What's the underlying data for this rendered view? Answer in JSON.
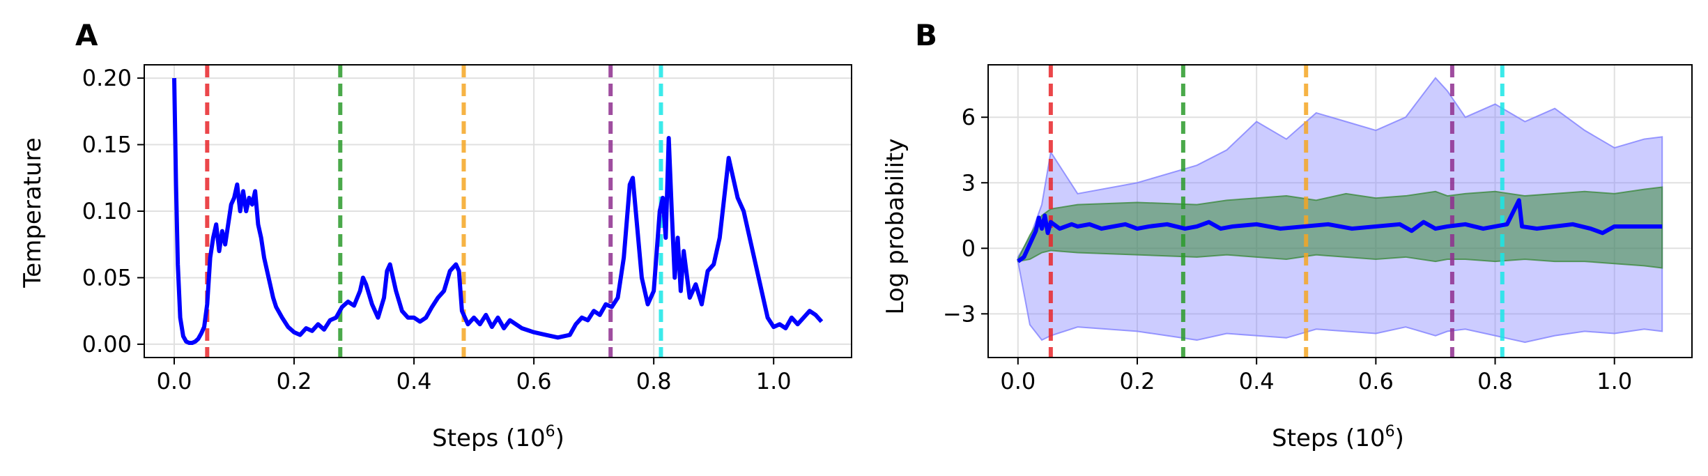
{
  "chart_data": [
    {
      "type": "line",
      "panel_label": "A",
      "xlabel": "Steps (10",
      "xlabel_exp": "6",
      "xlabel_close": ")",
      "ylabel": "Temperature",
      "xlim": [
        -0.05,
        1.13
      ],
      "ylim": [
        -0.01,
        0.21
      ],
      "xticks": [
        0.0,
        0.2,
        0.4,
        0.6,
        0.8,
        1.0
      ],
      "xtick_labels": [
        "0.0",
        "0.2",
        "0.4",
        "0.6",
        "0.8",
        "1.0"
      ],
      "yticks": [
        0.0,
        0.05,
        0.1,
        0.15,
        0.2
      ],
      "ytick_labels": [
        "0.00",
        "0.05",
        "0.10",
        "0.15",
        "0.20"
      ],
      "grid": true,
      "vlines": [
        {
          "x": 0.055,
          "color": "#e8262a"
        },
        {
          "x": 0.277,
          "color": "#2a9a2a"
        },
        {
          "x": 0.483,
          "color": "#f5a623"
        },
        {
          "x": 0.728,
          "color": "#8e2e8e"
        },
        {
          "x": 0.812,
          "color": "#19e6e6"
        }
      ],
      "series": [
        {
          "color": "#0000ff",
          "points": [
            [
              0.0,
              0.2
            ],
            [
              0.003,
              0.12
            ],
            [
              0.006,
              0.06
            ],
            [
              0.01,
              0.02
            ],
            [
              0.015,
              0.006
            ],
            [
              0.02,
              0.002
            ],
            [
              0.025,
              0.001
            ],
            [
              0.03,
              0.001
            ],
            [
              0.035,
              0.002
            ],
            [
              0.04,
              0.004
            ],
            [
              0.045,
              0.008
            ],
            [
              0.05,
              0.013
            ],
            [
              0.055,
              0.03
            ],
            [
              0.06,
              0.065
            ],
            [
              0.065,
              0.08
            ],
            [
              0.07,
              0.09
            ],
            [
              0.075,
              0.07
            ],
            [
              0.08,
              0.085
            ],
            [
              0.085,
              0.075
            ],
            [
              0.09,
              0.09
            ],
            [
              0.095,
              0.105
            ],
            [
              0.1,
              0.11
            ],
            [
              0.105,
              0.12
            ],
            [
              0.11,
              0.1
            ],
            [
              0.115,
              0.115
            ],
            [
              0.12,
              0.1
            ],
            [
              0.125,
              0.11
            ],
            [
              0.13,
              0.105
            ],
            [
              0.135,
              0.115
            ],
            [
              0.14,
              0.09
            ],
            [
              0.145,
              0.08
            ],
            [
              0.15,
              0.065
            ],
            [
              0.155,
              0.055
            ],
            [
              0.16,
              0.045
            ],
            [
              0.165,
              0.035
            ],
            [
              0.17,
              0.028
            ],
            [
              0.18,
              0.02
            ],
            [
              0.19,
              0.013
            ],
            [
              0.2,
              0.009
            ],
            [
              0.21,
              0.007
            ],
            [
              0.22,
              0.012
            ],
            [
              0.23,
              0.01
            ],
            [
              0.24,
              0.015
            ],
            [
              0.25,
              0.011
            ],
            [
              0.26,
              0.018
            ],
            [
              0.27,
              0.02
            ],
            [
              0.28,
              0.028
            ],
            [
              0.29,
              0.032
            ],
            [
              0.3,
              0.029
            ],
            [
              0.31,
              0.04
            ],
            [
              0.315,
              0.05
            ],
            [
              0.32,
              0.045
            ],
            [
              0.33,
              0.03
            ],
            [
              0.34,
              0.02
            ],
            [
              0.35,
              0.035
            ],
            [
              0.355,
              0.055
            ],
            [
              0.36,
              0.06
            ],
            [
              0.37,
              0.04
            ],
            [
              0.38,
              0.025
            ],
            [
              0.39,
              0.02
            ],
            [
              0.4,
              0.02
            ],
            [
              0.41,
              0.017
            ],
            [
              0.42,
              0.02
            ],
            [
              0.43,
              0.028
            ],
            [
              0.44,
              0.035
            ],
            [
              0.45,
              0.04
            ],
            [
              0.46,
              0.055
            ],
            [
              0.47,
              0.06
            ],
            [
              0.475,
              0.055
            ],
            [
              0.48,
              0.025
            ],
            [
              0.49,
              0.015
            ],
            [
              0.5,
              0.02
            ],
            [
              0.51,
              0.015
            ],
            [
              0.52,
              0.022
            ],
            [
              0.53,
              0.013
            ],
            [
              0.54,
              0.02
            ],
            [
              0.55,
              0.012
            ],
            [
              0.56,
              0.018
            ],
            [
              0.58,
              0.012
            ],
            [
              0.6,
              0.009
            ],
            [
              0.62,
              0.007
            ],
            [
              0.64,
              0.005
            ],
            [
              0.66,
              0.007
            ],
            [
              0.67,
              0.015
            ],
            [
              0.68,
              0.02
            ],
            [
              0.69,
              0.018
            ],
            [
              0.7,
              0.025
            ],
            [
              0.71,
              0.022
            ],
            [
              0.72,
              0.03
            ],
            [
              0.73,
              0.028
            ],
            [
              0.74,
              0.035
            ],
            [
              0.75,
              0.065
            ],
            [
              0.76,
              0.12
            ],
            [
              0.765,
              0.125
            ],
            [
              0.77,
              0.1
            ],
            [
              0.78,
              0.05
            ],
            [
              0.79,
              0.03
            ],
            [
              0.8,
              0.04
            ],
            [
              0.805,
              0.07
            ],
            [
              0.81,
              0.1
            ],
            [
              0.815,
              0.11
            ],
            [
              0.82,
              0.08
            ],
            [
              0.825,
              0.155
            ],
            [
              0.83,
              0.1
            ],
            [
              0.835,
              0.05
            ],
            [
              0.84,
              0.08
            ],
            [
              0.845,
              0.04
            ],
            [
              0.85,
              0.07
            ],
            [
              0.86,
              0.035
            ],
            [
              0.87,
              0.045
            ],
            [
              0.88,
              0.03
            ],
            [
              0.89,
              0.055
            ],
            [
              0.9,
              0.06
            ],
            [
              0.91,
              0.08
            ],
            [
              0.92,
              0.12
            ],
            [
              0.925,
              0.14
            ],
            [
              0.93,
              0.13
            ],
            [
              0.94,
              0.11
            ],
            [
              0.95,
              0.1
            ],
            [
              0.96,
              0.08
            ],
            [
              0.97,
              0.06
            ],
            [
              0.98,
              0.04
            ],
            [
              0.99,
              0.02
            ],
            [
              1.0,
              0.013
            ],
            [
              1.01,
              0.015
            ],
            [
              1.02,
              0.012
            ],
            [
              1.03,
              0.02
            ],
            [
              1.04,
              0.015
            ],
            [
              1.05,
              0.02
            ],
            [
              1.06,
              0.025
            ],
            [
              1.07,
              0.022
            ],
            [
              1.08,
              0.017
            ]
          ]
        }
      ]
    },
    {
      "type": "line",
      "panel_label": "B",
      "xlabel": "Steps (10",
      "xlabel_exp": "6",
      "xlabel_close": ")",
      "ylabel": "Log probability",
      "xlim": [
        -0.05,
        1.13
      ],
      "ylim": [
        -5.0,
        8.4
      ],
      "xticks": [
        0.0,
        0.2,
        0.4,
        0.6,
        0.8,
        1.0
      ],
      "xtick_labels": [
        "0.0",
        "0.2",
        "0.4",
        "0.6",
        "0.8",
        "1.0"
      ],
      "yticks": [
        -3,
        0,
        3,
        6
      ],
      "ytick_labels": [
        "−3",
        "0",
        "3",
        "6"
      ],
      "grid": true,
      "vlines": [
        {
          "x": 0.055,
          "color": "#e8262a"
        },
        {
          "x": 0.277,
          "color": "#2a9a2a"
        },
        {
          "x": 0.483,
          "color": "#f5a623"
        },
        {
          "x": 0.728,
          "color": "#8e2e8e"
        },
        {
          "x": 0.812,
          "color": "#19e6e6"
        }
      ],
      "bands": [
        {
          "color": "#8080ff",
          "x": [
            0.0,
            0.02,
            0.04,
            0.055,
            0.1,
            0.2,
            0.3,
            0.35,
            0.4,
            0.45,
            0.5,
            0.55,
            0.6,
            0.65,
            0.7,
            0.72,
            0.75,
            0.8,
            0.85,
            0.9,
            0.95,
            1.0,
            1.05,
            1.08
          ],
          "upper": [
            -0.4,
            0.5,
            2.0,
            4.4,
            2.5,
            3.0,
            3.8,
            4.5,
            5.8,
            5.0,
            6.2,
            5.8,
            5.4,
            6.0,
            7.8,
            7.2,
            6.0,
            6.6,
            5.8,
            6.4,
            5.4,
            4.6,
            5.0,
            5.1
          ],
          "lower": [
            -0.6,
            -3.5,
            -4.2,
            -4.0,
            -3.6,
            -3.8,
            -4.2,
            -3.9,
            -4.0,
            -4.1,
            -3.7,
            -3.8,
            -3.9,
            -3.6,
            -4.0,
            -3.8,
            -3.7,
            -4.0,
            -4.3,
            -4.0,
            -3.8,
            -3.9,
            -3.7,
            -3.8
          ]
        },
        {
          "color": "#3d8a3d",
          "x": [
            0.0,
            0.02,
            0.04,
            0.055,
            0.1,
            0.2,
            0.3,
            0.35,
            0.4,
            0.45,
            0.5,
            0.55,
            0.6,
            0.65,
            0.7,
            0.72,
            0.75,
            0.8,
            0.85,
            0.9,
            0.95,
            1.0,
            1.05,
            1.08
          ],
          "upper": [
            -0.5,
            0.6,
            1.5,
            1.8,
            2.0,
            2.1,
            2.0,
            2.2,
            2.3,
            2.4,
            2.2,
            2.5,
            2.3,
            2.4,
            2.6,
            2.4,
            2.5,
            2.6,
            2.4,
            2.5,
            2.6,
            2.5,
            2.7,
            2.8
          ],
          "lower": [
            -0.6,
            -0.5,
            -0.2,
            -0.1,
            -0.2,
            -0.3,
            -0.4,
            -0.3,
            -0.4,
            -0.5,
            -0.3,
            -0.4,
            -0.5,
            -0.4,
            -0.6,
            -0.5,
            -0.5,
            -0.6,
            -0.5,
            -0.6,
            -0.6,
            -0.7,
            -0.8,
            -0.9
          ]
        }
      ],
      "series": [
        {
          "color": "#0000ff",
          "points": [
            [
              0.0,
              -0.6
            ],
            [
              0.01,
              -0.4
            ],
            [
              0.02,
              0.2
            ],
            [
              0.03,
              0.8
            ],
            [
              0.035,
              1.4
            ],
            [
              0.04,
              0.9
            ],
            [
              0.045,
              1.5
            ],
            [
              0.05,
              0.7
            ],
            [
              0.055,
              1.2
            ],
            [
              0.07,
              0.9
            ],
            [
              0.09,
              1.1
            ],
            [
              0.1,
              1.0
            ],
            [
              0.12,
              1.1
            ],
            [
              0.14,
              0.9
            ],
            [
              0.16,
              1.0
            ],
            [
              0.18,
              1.1
            ],
            [
              0.2,
              0.9
            ],
            [
              0.22,
              1.0
            ],
            [
              0.25,
              1.1
            ],
            [
              0.28,
              0.9
            ],
            [
              0.3,
              1.0
            ],
            [
              0.32,
              1.2
            ],
            [
              0.34,
              0.9
            ],
            [
              0.36,
              1.0
            ],
            [
              0.4,
              1.1
            ],
            [
              0.44,
              0.9
            ],
            [
              0.48,
              1.0
            ],
            [
              0.52,
              1.1
            ],
            [
              0.56,
              0.9
            ],
            [
              0.6,
              1.0
            ],
            [
              0.64,
              1.1
            ],
            [
              0.66,
              0.8
            ],
            [
              0.68,
              1.2
            ],
            [
              0.7,
              0.9
            ],
            [
              0.72,
              1.0
            ],
            [
              0.75,
              1.1
            ],
            [
              0.78,
              0.9
            ],
            [
              0.8,
              1.0
            ],
            [
              0.82,
              1.1
            ],
            [
              0.84,
              2.2
            ],
            [
              0.845,
              1.0
            ],
            [
              0.87,
              0.9
            ],
            [
              0.9,
              1.0
            ],
            [
              0.93,
              1.1
            ],
            [
              0.96,
              0.9
            ],
            [
              0.98,
              0.7
            ],
            [
              1.0,
              1.0
            ],
            [
              1.04,
              1.0
            ],
            [
              1.08,
              1.0
            ]
          ]
        }
      ]
    }
  ]
}
